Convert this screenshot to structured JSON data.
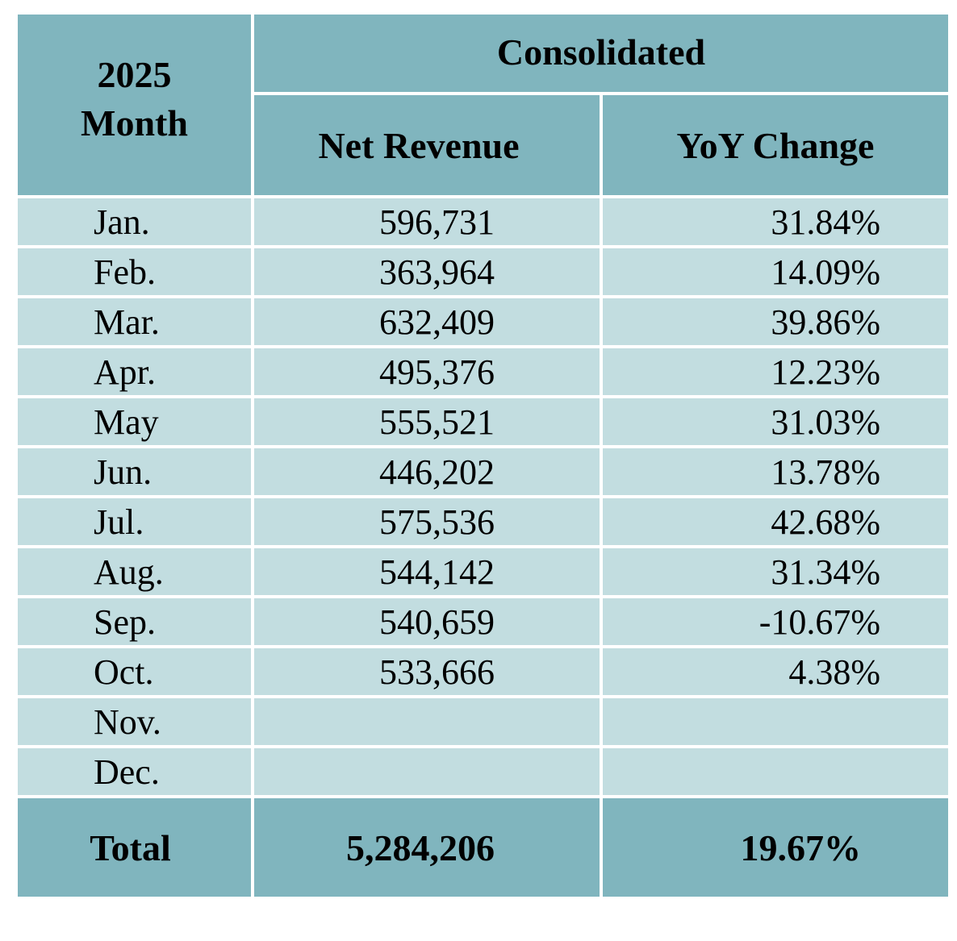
{
  "header": {
    "year": "2025",
    "month_label": "Month",
    "group_label": "Consolidated",
    "col_revenue": "Net Revenue",
    "col_yoy": "YoY Change"
  },
  "rows": [
    {
      "month": "Jan.",
      "revenue": "596,731",
      "yoy": "31.84%"
    },
    {
      "month": "Feb.",
      "revenue": "363,964",
      "yoy": "14.09%"
    },
    {
      "month": "Mar.",
      "revenue": "632,409",
      "yoy": "39.86%"
    },
    {
      "month": "Apr.",
      "revenue": "495,376",
      "yoy": "12.23%"
    },
    {
      "month": "May",
      "revenue": "555,521",
      "yoy": "31.03%"
    },
    {
      "month": "Jun.",
      "revenue": "446,202",
      "yoy": "13.78%"
    },
    {
      "month": "Jul.",
      "revenue": "575,536",
      "yoy": "42.68%"
    },
    {
      "month": "Aug.",
      "revenue": "544,142",
      "yoy": "31.34%"
    },
    {
      "month": "Sep.",
      "revenue": "540,659",
      "yoy": "-10.67%"
    },
    {
      "month": "Oct.",
      "revenue": "533,666",
      "yoy": "4.38%"
    },
    {
      "month": "Nov.",
      "revenue": "",
      "yoy": ""
    },
    {
      "month": "Dec.",
      "revenue": "",
      "yoy": ""
    }
  ],
  "total": {
    "label": "Total",
    "revenue": "5,284,206",
    "yoy": "19.67%"
  },
  "colors": {
    "header_bg": "#80b5be",
    "row_bg": "#c2dde0",
    "grid_line": "#ffffff"
  }
}
